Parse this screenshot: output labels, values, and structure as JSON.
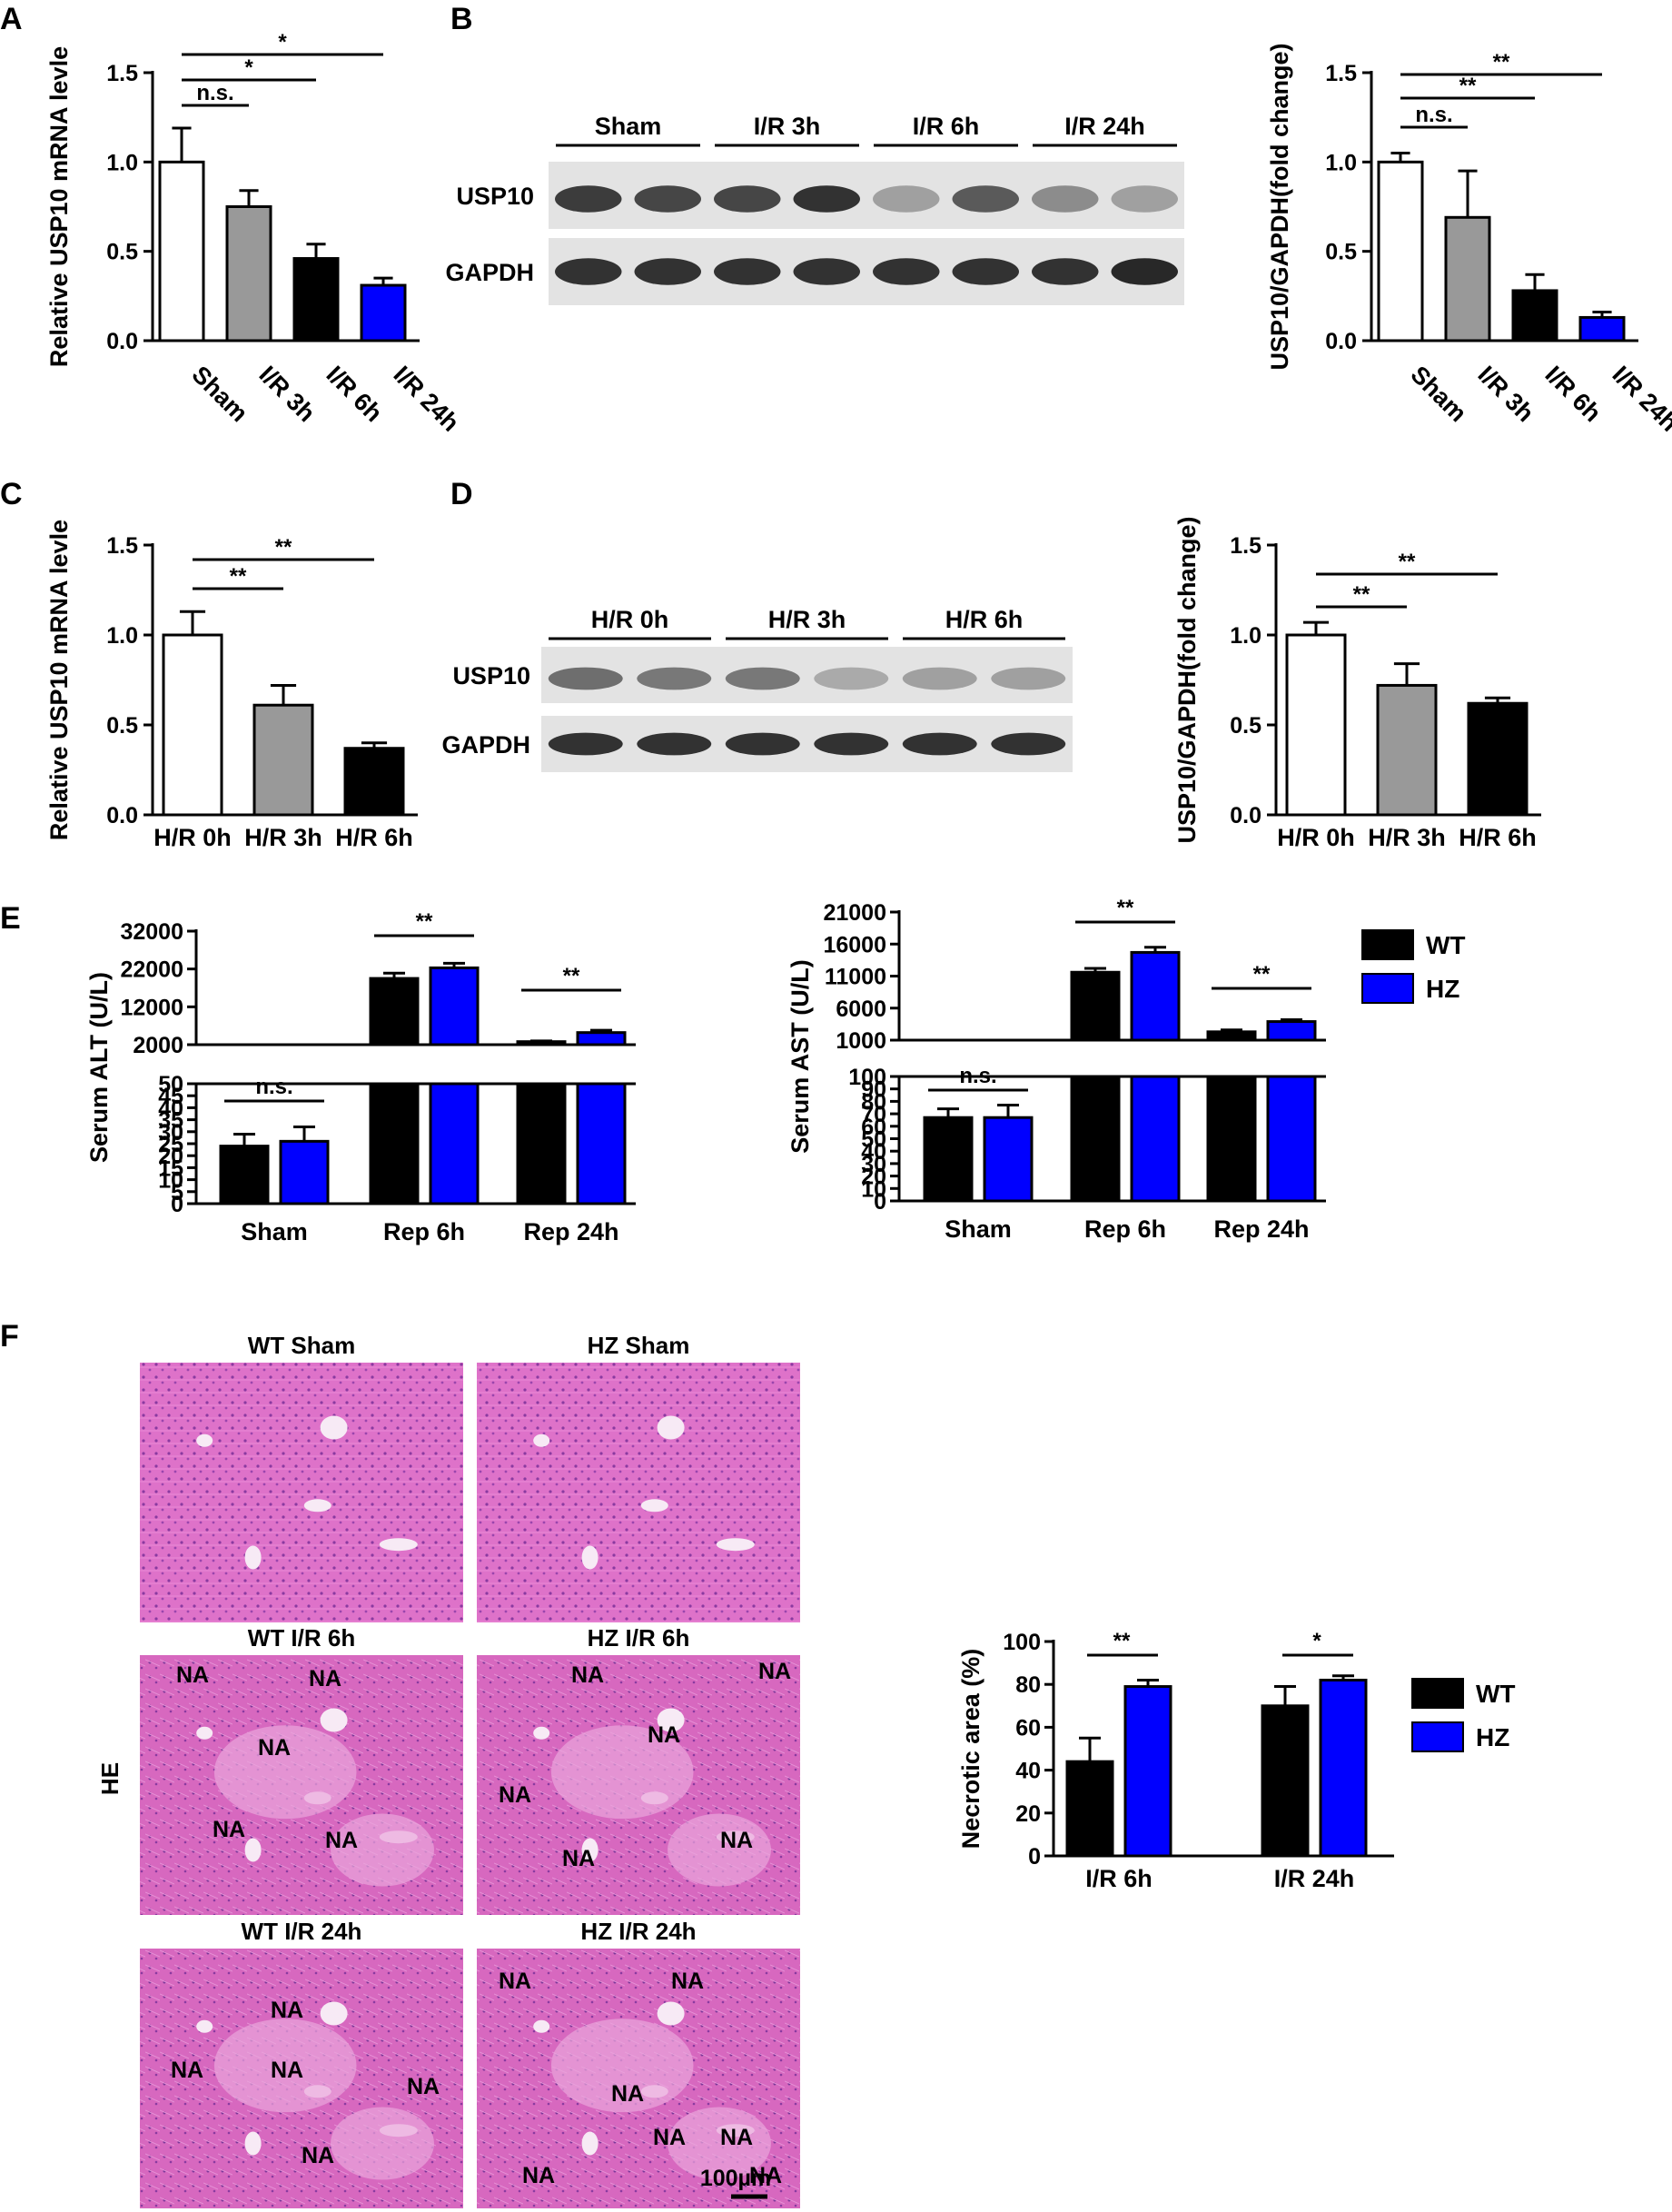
{
  "colors": {
    "sham": "#ffffff",
    "ir3h": "#999999",
    "black": "#000000",
    "blue": "#0000ff",
    "he_bg": "#de6ec4",
    "he_dark": "#c65bb3"
  },
  "panels": {
    "A": "A",
    "B": "B",
    "C": "C",
    "D": "D",
    "E": "E",
    "F": "F"
  },
  "chart_data": [
    {
      "id": "A",
      "type": "bar",
      "ylabel": "Relative USP10 mRNA levle",
      "ylim": [
        0,
        1.5
      ],
      "yticks": [
        0.0,
        0.5,
        1.0,
        1.5
      ],
      "ytick_labels": [
        "0.0",
        "0.5",
        "1.0",
        "1.5"
      ],
      "categories": [
        "Sham",
        "I/R 3h",
        "I/R 6h",
        "I/R 24h"
      ],
      "values": [
        1.0,
        0.75,
        0.46,
        0.31
      ],
      "errors": [
        0.19,
        0.09,
        0.08,
        0.04
      ],
      "colors": [
        "#ffffff",
        "#999999",
        "#000000",
        "#0000ff"
      ],
      "significance": [
        {
          "from": 0,
          "to": 1,
          "label": "n.s."
        },
        {
          "from": 0,
          "to": 2,
          "label": "*"
        },
        {
          "from": 0,
          "to": 3,
          "label": "*"
        }
      ]
    },
    {
      "id": "B",
      "type": "bar",
      "ylabel": "USP10/GAPDH(fold change)",
      "ylim": [
        0,
        1.5
      ],
      "yticks": [
        0.0,
        0.5,
        1.0,
        1.5
      ],
      "ytick_labels": [
        "0.0",
        "0.5",
        "1.0",
        "1.5"
      ],
      "categories": [
        "Sham",
        "I/R 3h",
        "I/R 6h",
        "I/R 24h"
      ],
      "values": [
        1.0,
        0.69,
        0.28,
        0.13
      ],
      "errors": [
        0.05,
        0.26,
        0.09,
        0.03
      ],
      "colors": [
        "#ffffff",
        "#999999",
        "#000000",
        "#0000ff"
      ],
      "significance": [
        {
          "from": 0,
          "to": 1,
          "label": "n.s."
        },
        {
          "from": 0,
          "to": 2,
          "label": "**"
        },
        {
          "from": 0,
          "to": 3,
          "label": "**"
        }
      ]
    },
    {
      "id": "C",
      "type": "bar",
      "ylabel": "Relative USP10 mRNA levle",
      "ylim": [
        0,
        1.5
      ],
      "yticks": [
        0.0,
        0.5,
        1.0,
        1.5
      ],
      "ytick_labels": [
        "0.0",
        "0.5",
        "1.0",
        "1.5"
      ],
      "categories": [
        "H/R 0h",
        "H/R 3h",
        "H/R 6h"
      ],
      "values": [
        1.0,
        0.61,
        0.37
      ],
      "errors": [
        0.13,
        0.11,
        0.03
      ],
      "colors": [
        "#ffffff",
        "#999999",
        "#000000"
      ],
      "significance": [
        {
          "from": 0,
          "to": 1,
          "label": "**"
        },
        {
          "from": 0,
          "to": 2,
          "label": "**"
        }
      ]
    },
    {
      "id": "D",
      "type": "bar",
      "ylabel": "USP10/GAPDH(fold change)",
      "ylim": [
        0,
        1.5
      ],
      "yticks": [
        0.0,
        0.5,
        1.0,
        1.5
      ],
      "ytick_labels": [
        "0.0",
        "0.5",
        "1.0",
        "1.5"
      ],
      "categories": [
        "H/R 0h",
        "H/R 3h",
        "H/R 6h"
      ],
      "values": [
        1.0,
        0.72,
        0.62
      ],
      "errors": [
        0.07,
        0.12,
        0.03
      ],
      "colors": [
        "#ffffff",
        "#999999",
        "#000000"
      ],
      "significance": [
        {
          "from": 0,
          "to": 1,
          "label": "**"
        },
        {
          "from": 0,
          "to": 2,
          "label": "**"
        }
      ]
    },
    {
      "id": "E-ALT",
      "type": "bar",
      "ylabel": "Serum ALT (U/L)",
      "broken_axis": true,
      "upper_ylim": [
        2000,
        32000
      ],
      "upper_ticks": [
        2000,
        12000,
        22000,
        32000
      ],
      "upper_tick_labels": [
        "2000",
        "12000",
        "22000",
        "32000"
      ],
      "lower_ylim": [
        0,
        50
      ],
      "lower_ticks": [
        0,
        5,
        10,
        15,
        20,
        25,
        30,
        35,
        40,
        45,
        50
      ],
      "lower_tick_labels": [
        "0",
        "5",
        "10",
        "15",
        "20",
        "25",
        "30",
        "35",
        "40",
        "45",
        "50"
      ],
      "categories": [
        "Sham",
        "Rep 6h",
        "Rep 24h"
      ],
      "series": [
        {
          "name": "WT",
          "color": "#000000",
          "values": [
            24,
            19500,
            2800
          ],
          "errors": [
            5,
            1400,
            200
          ]
        },
        {
          "name": "HZ",
          "color": "#0000ff",
          "values": [
            26,
            22300,
            5200
          ],
          "errors": [
            6,
            1200,
            600
          ]
        }
      ],
      "significance": [
        {
          "category": 0,
          "label": "n.s."
        },
        {
          "category": 1,
          "label": "**"
        },
        {
          "category": 2,
          "label": "**"
        }
      ]
    },
    {
      "id": "E-AST",
      "type": "bar",
      "ylabel": "Serum AST (U/L)",
      "broken_axis": true,
      "upper_ylim": [
        1000,
        21000
      ],
      "upper_ticks": [
        1000,
        6000,
        11000,
        16000,
        21000
      ],
      "upper_tick_labels": [
        "1000",
        "6000",
        "11000",
        "16000",
        "21000"
      ],
      "lower_ylim": [
        0,
        100
      ],
      "lower_ticks": [
        0,
        10,
        20,
        30,
        40,
        50,
        60,
        70,
        80,
        90,
        100
      ],
      "lower_tick_labels": [
        "0",
        "10",
        "20",
        "30",
        "40",
        "50",
        "60",
        "70",
        "80",
        "90",
        "100"
      ],
      "categories": [
        "Sham",
        "Rep 6h",
        "Rep 24h"
      ],
      "series": [
        {
          "name": "WT",
          "color": "#000000",
          "values": [
            67,
            11600,
            2300
          ],
          "errors": [
            7,
            600,
            300
          ]
        },
        {
          "name": "HZ",
          "color": "#0000ff",
          "values": [
            67,
            14700,
            3900
          ],
          "errors": [
            10,
            800,
            300
          ]
        }
      ],
      "significance": [
        {
          "category": 0,
          "label": "n.s."
        },
        {
          "category": 1,
          "label": "**"
        },
        {
          "category": 2,
          "label": "**"
        }
      ]
    },
    {
      "id": "F",
      "type": "bar",
      "ylabel": "Necrotic area (%)",
      "ylim": [
        0,
        100
      ],
      "yticks": [
        0,
        20,
        40,
        60,
        80,
        100
      ],
      "ytick_labels": [
        "0",
        "20",
        "40",
        "60",
        "80",
        "100"
      ],
      "categories": [
        "I/R 6h",
        "I/R 24h"
      ],
      "series": [
        {
          "name": "WT",
          "color": "#000000",
          "values": [
            44,
            70
          ],
          "errors": [
            11,
            9
          ]
        },
        {
          "name": "HZ",
          "color": "#0000ff",
          "values": [
            79,
            82
          ],
          "errors": [
            3,
            2
          ]
        }
      ],
      "significance": [
        {
          "category": 0,
          "label": "**"
        },
        {
          "category": 1,
          "label": "*"
        }
      ]
    }
  ],
  "blots": {
    "B": {
      "groups": [
        "Sham",
        "I/R 3h",
        "I/R 6h",
        "I/R 24h"
      ],
      "rows": [
        "USP10",
        "GAPDH"
      ],
      "usp10_intensity": [
        0.85,
        0.8,
        0.8,
        0.9,
        0.35,
        0.7,
        0.45,
        0.35
      ],
      "gapdh_intensity": [
        0.9,
        0.9,
        0.9,
        0.9,
        0.9,
        0.9,
        0.9,
        0.95
      ]
    },
    "D": {
      "groups": [
        "H/R 0h",
        "H/R 3h",
        "H/R 6h"
      ],
      "rows": [
        "USP10",
        "GAPDH"
      ],
      "usp10_intensity": [
        0.6,
        0.55,
        0.55,
        0.3,
        0.35,
        0.35
      ],
      "gapdh_intensity": [
        0.9,
        0.9,
        0.9,
        0.9,
        0.9,
        0.9
      ]
    }
  },
  "legend_e": [
    {
      "label": "WT",
      "color": "#000000"
    },
    {
      "label": "HZ",
      "color": "#0000ff"
    }
  ],
  "legend_f": [
    {
      "label": "WT",
      "color": "#000000"
    },
    {
      "label": "HZ",
      "color": "#0000ff"
    }
  ],
  "micrographs": {
    "side_label": "HE",
    "scale_bar": "100µm",
    "na_label": "NA",
    "panels": [
      {
        "title": "WT Sham",
        "na_count": 0
      },
      {
        "title": "HZ Sham",
        "na_count": 0
      },
      {
        "title": "WT I/R 6h",
        "na_count": 5
      },
      {
        "title": "HZ I/R 6h",
        "na_count": 6
      },
      {
        "title": "WT I/R 24h",
        "na_count": 5
      },
      {
        "title": "HZ I/R 24h",
        "na_count": 7
      }
    ]
  }
}
